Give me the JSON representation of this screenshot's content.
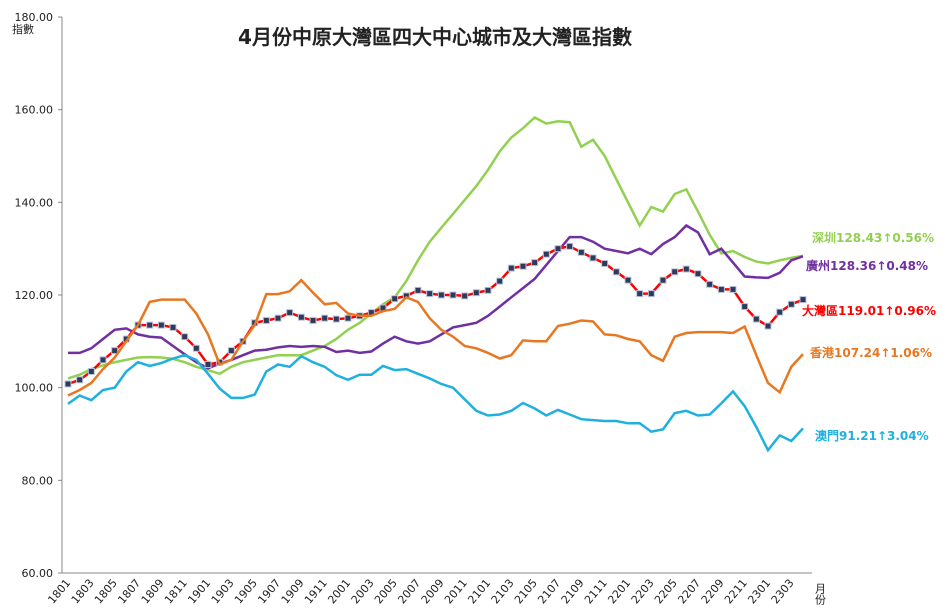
{
  "chart_data": {
    "type": "line",
    "title": "4月份中原大灣區四大中心城市及大灣區指數",
    "y_label": "指數",
    "x_label": "月份",
    "categories": [
      "1801",
      null,
      "1803",
      null,
      "1805",
      null,
      "1807",
      null,
      "1809",
      null,
      "1811",
      null,
      "1901",
      null,
      "1903",
      null,
      "1905",
      null,
      "1907",
      null,
      "1909",
      null,
      "1911",
      null,
      "2001",
      null,
      "2003",
      null,
      "2005",
      null,
      "2007",
      null,
      "2009",
      null,
      "2011",
      null,
      "2101",
      null,
      "2103",
      null,
      "2105",
      null,
      "2107",
      null,
      "2109",
      null,
      "2111",
      null,
      "2201",
      null,
      "2203",
      null,
      "2205",
      null,
      "2207",
      null,
      "2209",
      null,
      "2211",
      null,
      "2301",
      null,
      "2303",
      null
    ],
    "ylim": [
      60,
      180
    ],
    "yticks": [
      {
        "value": 60,
        "label": "60.00"
      },
      {
        "value": 80,
        "label": "80.00"
      },
      {
        "value": 100,
        "label": "100.00"
      },
      {
        "value": 120,
        "label": "120.00"
      },
      {
        "value": 140,
        "label": "140.00"
      },
      {
        "value": 160,
        "label": "160.00"
      },
      {
        "value": 180,
        "label": "180.00"
      }
    ],
    "series": [
      {
        "name": "深圳",
        "note": "128.43↑0.56%",
        "color": "#92d050",
        "values": [
          102,
          102.8,
          104,
          104.8,
          105.5,
          106,
          106.5,
          106.6,
          106.5,
          106.2,
          105.5,
          104.5,
          103.8,
          103,
          104.5,
          105.5,
          106,
          106.5,
          107,
          107,
          107,
          108,
          109,
          110.5,
          112.5,
          114,
          116,
          118,
          119.5,
          123,
          127.5,
          131.5,
          134.5,
          137.5,
          140.5,
          143.5,
          147,
          151,
          154,
          156,
          158.3,
          157,
          157.5,
          157.3,
          152,
          153.5,
          150,
          145,
          140,
          135,
          139,
          138,
          141.8,
          142.8,
          138,
          133,
          129,
          129.5,
          128.2,
          127.2,
          126.8,
          127.5,
          128,
          128.43
        ]
      },
      {
        "name": "廣州",
        "note": "128.36↑0.48%",
        "color": "#7030a0",
        "values": [
          107.5,
          107.5,
          108.5,
          110.5,
          112.5,
          112.8,
          111.5,
          111,
          110.8,
          109,
          107.2,
          105.5,
          104.2,
          105.2,
          106,
          107,
          108,
          108.2,
          108.7,
          109,
          108.8,
          109,
          108.8,
          107.7,
          108,
          107.5,
          107.8,
          109.5,
          111,
          110,
          109.5,
          110,
          111.5,
          113,
          113.5,
          114,
          115.5,
          117.5,
          119.5,
          121.5,
          123.5,
          126.5,
          129.5,
          132.5,
          132.5,
          131.5,
          130,
          129.5,
          129,
          130,
          128.8,
          131,
          132.5,
          135,
          133.5,
          128.8,
          130,
          127,
          124,
          123.8,
          123.7,
          124.8,
          127.5,
          128.36
        ]
      },
      {
        "name": "大灣區",
        "note": "119.01↑0.96%",
        "color": "#ff0000",
        "markers": true,
        "values": [
          100.8,
          101.7,
          103.5,
          106,
          108,
          110.5,
          113.5,
          113.5,
          113.5,
          113,
          111,
          108.5,
          105,
          105.5,
          108,
          110,
          114,
          114.5,
          115,
          116.2,
          115.2,
          114.5,
          115,
          114.8,
          115,
          115.5,
          116.2,
          117.2,
          119.2,
          119.8,
          121,
          120.3,
          120,
          120,
          119.8,
          120.5,
          121,
          123,
          125.8,
          126.2,
          127,
          128.8,
          130,
          130.5,
          129.2,
          128,
          126.8,
          125,
          123.2,
          120.3,
          120.3,
          123.2,
          125,
          125.6,
          124.6,
          122.3,
          121.2,
          121.2,
          117.5,
          114.8,
          113.3,
          116.3,
          118,
          119.01
        ]
      },
      {
        "name": "香港",
        "note": "107.24↑1.06%",
        "color": "#e87722",
        "values": [
          98.3,
          99.5,
          101,
          104,
          106.5,
          110,
          113.5,
          118.5,
          119,
          119,
          119,
          116,
          111.5,
          105,
          106,
          110,
          113.5,
          120.2,
          120.2,
          120.8,
          123.2,
          120.5,
          118,
          118.3,
          116,
          115.5,
          115.5,
          116.5,
          117,
          119.5,
          118.5,
          115,
          112.5,
          111,
          109,
          108.5,
          107.5,
          106.3,
          107,
          110.2,
          110,
          110,
          113.3,
          113.8,
          114.5,
          114.3,
          111.5,
          111.3,
          110.5,
          110,
          107,
          105.8,
          111,
          111.8,
          112,
          112,
          112,
          111.8,
          113.2,
          107,
          101,
          99,
          104.5,
          107.24
        ]
      },
      {
        "name": "澳門",
        "note": "91.21↑3.04%",
        "color": "#1fb0e0",
        "values": [
          96.5,
          98.3,
          97.3,
          99.5,
          100,
          103.5,
          105.5,
          104.7,
          105.3,
          106.3,
          107,
          106,
          103,
          99.8,
          97.8,
          97.8,
          98.5,
          103.5,
          105,
          104.5,
          106.8,
          105.5,
          104.5,
          102.7,
          101.7,
          102.8,
          102.8,
          104.7,
          103.8,
          104,
          103,
          102,
          100.8,
          100,
          97.5,
          95,
          94,
          94.2,
          95,
          96.7,
          95.5,
          94,
          95.2,
          94.2,
          93.2,
          93,
          92.8,
          92.8,
          92.3,
          92.3,
          90.5,
          91,
          94.5,
          95,
          94,
          94.2,
          96.6,
          99.2,
          96,
          91.5,
          86.5,
          89.7,
          88.5,
          91.21
        ]
      }
    ]
  }
}
